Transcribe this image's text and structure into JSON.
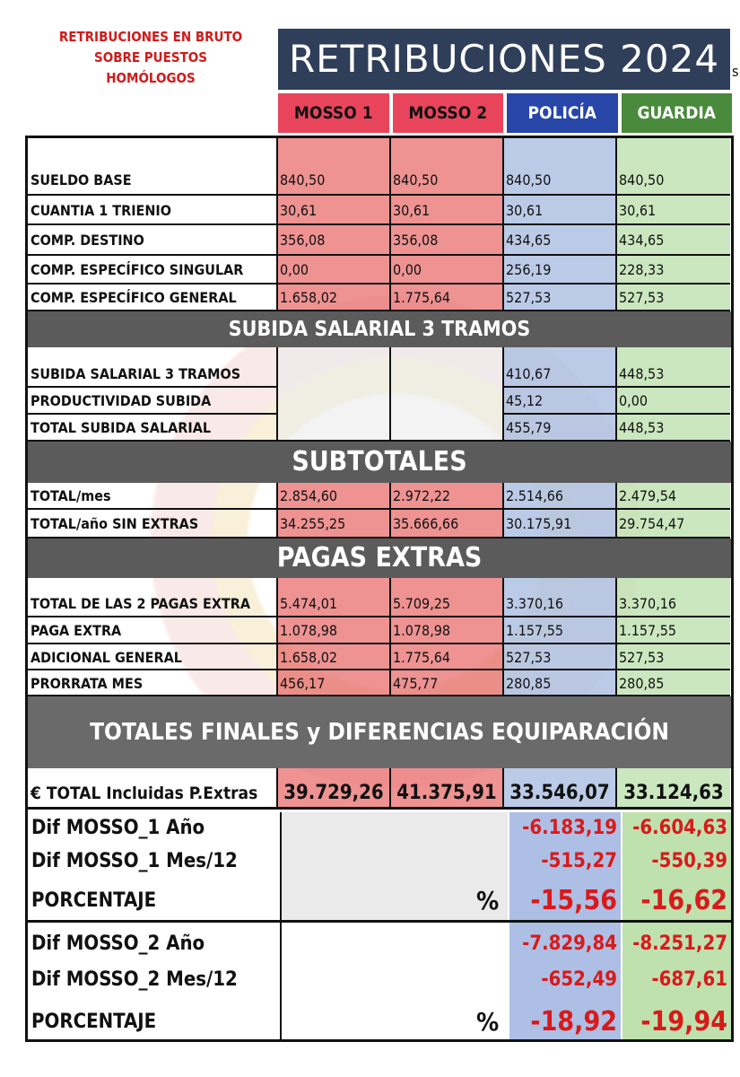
{
  "note": {
    "line1": "RETRIBUCIONES EN BRUTO",
    "line2": "SOBRE PUESTOS",
    "line3": "HOMÓLOGOS"
  },
  "title": "RETRIBUCIONES 2024",
  "stray_char": "s",
  "columns": [
    "MOSSO 1",
    "MOSSO 2",
    "POLICÍA",
    "GUARDIA"
  ],
  "colors": {
    "title_bg": "#2f3e59",
    "mosso": "#e8455d",
    "policia": "#2845a8",
    "guardia": "#4a8a3c",
    "band": "#5b5b5b",
    "negative": "#d81a1a"
  },
  "base_rows": [
    {
      "label": "SUELDO BASE",
      "values": [
        "840,50",
        "840,50",
        "840,50",
        "840,50"
      ]
    },
    {
      "label": "CUANTIA 1 TRIENIO",
      "values": [
        "30,61",
        "30,61",
        "30,61",
        "30,61"
      ]
    },
    {
      "label": "COMP. DESTINO",
      "values": [
        "356,08",
        "356,08",
        "434,65",
        "434,65"
      ]
    },
    {
      "label": "COMP. ESPECÍFICO SINGULAR",
      "values": [
        "0,00",
        "0,00",
        "256,19",
        "228,33"
      ]
    },
    {
      "label": "COMP. ESPECÍFICO GENERAL",
      "values": [
        "1.658,02",
        "1.775,64",
        "527,53",
        "527,53"
      ]
    }
  ],
  "band_subida": "SUBIDA SALARIAL 3 TRAMOS",
  "subida_rows": [
    {
      "label": "SUBIDA SALARIAL 3 TRAMOS",
      "values": [
        "",
        "",
        "410,67",
        "448,53"
      ]
    },
    {
      "label": "PRODUCTIVIDAD SUBIDA",
      "values": [
        "",
        "",
        "45,12",
        "0,00"
      ]
    },
    {
      "label": "TOTAL SUBIDA SALARIAL",
      "values": [
        "",
        "",
        "455,79",
        "448,53"
      ]
    }
  ],
  "band_subtotales": "SUBTOTALES",
  "subtotal_rows": [
    {
      "label": "TOTAL/mes",
      "values": [
        "2.854,60",
        "2.972,22",
        "2.514,66",
        "2.479,54"
      ]
    },
    {
      "label": "TOTAL/año SIN EXTRAS",
      "values": [
        "34.255,25",
        "35.666,66",
        "30.175,91",
        "29.754,47"
      ]
    }
  ],
  "band_pagas": "PAGAS EXTRAS",
  "pagas_rows": [
    {
      "label": "TOTAL DE LAS 2 PAGAS EXTRA",
      "values": [
        "5.474,01",
        "5.709,25",
        "3.370,16",
        "3.370,16"
      ]
    },
    {
      "label": "PAGA EXTRA",
      "values": [
        "1.078,98",
        "1.078,98",
        "1.157,55",
        "1.157,55"
      ]
    },
    {
      "label": "ADICIONAL GENERAL",
      "values": [
        "1.658,02",
        "1.775,64",
        "527,53",
        "527,53"
      ]
    },
    {
      "label": "PRORRATA MES",
      "values": [
        "456,17",
        "475,77",
        "280,85",
        "280,85"
      ]
    }
  ],
  "band_totales": "TOTALES FINALES y DIFERENCIAS EQUIPARACIÓN",
  "total_row": {
    "label": "€ TOTAL Incluidas P.Extras",
    "values": [
      "39.729,26",
      "41.375,91",
      "33.546,07",
      "33.124,63"
    ]
  },
  "dif1": {
    "anio_label": "Dif  MOSSO_1  Año",
    "anio": [
      "-6.183,19",
      "-6.604,63"
    ],
    "mes_label": "Dif  MOSSO_1 Mes/12",
    "mes": [
      "-515,27",
      "-550,39"
    ],
    "pct_label": "PORCENTAJE",
    "pct_sign": "%",
    "pct": [
      "-15,56",
      "-16,62"
    ]
  },
  "dif2": {
    "anio_label": "Dif  MOSSO_2 Año",
    "anio": [
      "-7.829,84",
      "-8.251,27"
    ],
    "mes_label": "Dif  MOSSO_2 Mes/12",
    "mes": [
      "-652,49",
      "-687,61"
    ],
    "pct_label": "PORCENTAJE",
    "pct_sign": "%",
    "pct": [
      "-18,92",
      "-19,94"
    ]
  }
}
